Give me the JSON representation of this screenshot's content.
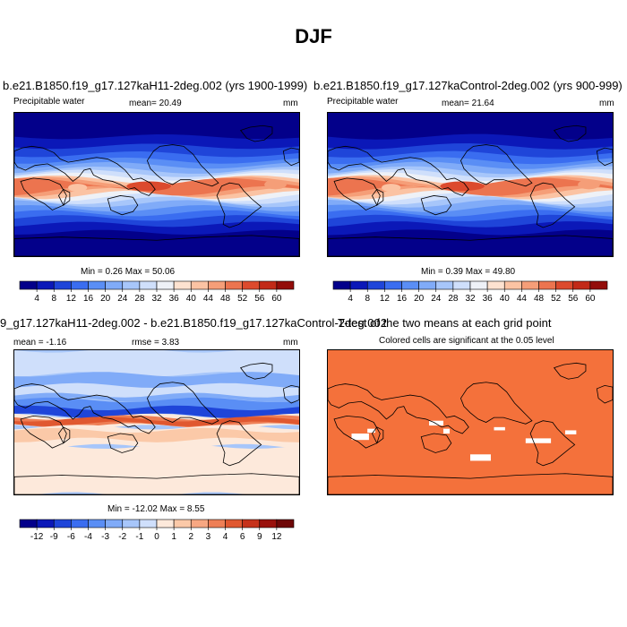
{
  "page": {
    "title": "DJF"
  },
  "panels": [
    {
      "id": "case",
      "title": "b.e21.B1850.f19_g17.127kaH11-2deg.002 (yrs 1900-1999)",
      "variable": "Precipitable water",
      "mean_text": "mean=  20.49",
      "units": "mm",
      "minmax_text": "Min =   0.26 Max =  50.06"
    },
    {
      "id": "control",
      "title": "b.e21.B1850.f19_g17.127kaControl-2deg.002 (yrs 900-999)",
      "variable": "Precipitable water",
      "mean_text": "mean=  21.64",
      "units": "mm",
      "minmax_text": "Min =   0.39 Max =  49.80"
    },
    {
      "id": "diff",
      "title": "9_g17.127kaH11-2deg.002 - b.e21.B1850.f19_g17.127kaControl-2deg.002",
      "mean_text": "mean =  -1.16",
      "rmse_text": "rmse =   3.83",
      "units": "mm",
      "minmax_text": "Min = -12.02 Max =   8.55"
    },
    {
      "id": "ttest",
      "title": "T-test of the two means at each grid point",
      "subtitle": "Colored cells are significant at the 0.05 level"
    }
  ],
  "chart_data": [
    {
      "type": "heatmap",
      "title": "b.e21.B1850.f19_g17.127kaH11-2deg.002 (yrs 1900-1999)",
      "field": "Precipitable water",
      "units": "mm",
      "mean": 20.49,
      "min": 0.26,
      "max": 50.06,
      "colorbar_levels": [
        4,
        8,
        12,
        16,
        20,
        24,
        28,
        32,
        36,
        40,
        44,
        48,
        52,
        56,
        60
      ]
    },
    {
      "type": "heatmap",
      "title": "b.e21.B1850.f19_g17.127kaControl-2deg.002 (yrs 900-999)",
      "field": "Precipitable water",
      "units": "mm",
      "mean": 21.64,
      "min": 0.39,
      "max": 49.8,
      "colorbar_levels": [
        4,
        8,
        12,
        16,
        20,
        24,
        28,
        32,
        36,
        40,
        44,
        48,
        52,
        56,
        60
      ]
    },
    {
      "type": "heatmap",
      "title": "9_g17.127kaH11-2deg.002 - b.e21.B1850.f19_g17.127kaControl-2deg.002",
      "units": "mm",
      "mean": -1.16,
      "rmse": 3.83,
      "min": -12.02,
      "max": 8.55,
      "colorbar_levels": [
        -12,
        -9,
        -6,
        -4,
        -3,
        -2,
        -1,
        0,
        1,
        2,
        3,
        4,
        6,
        9,
        12
      ]
    },
    {
      "type": "heatmap",
      "title": "T-test of the two means at each grid point",
      "subtitle": "Colored cells are significant at the 0.05 level"
    }
  ],
  "colors": {
    "pw_scale": [
      "#03008a",
      "#0b18b8",
      "#1f45d9",
      "#3a6df0",
      "#5a8ef5",
      "#80abf8",
      "#a7c6fa",
      "#cfdffb",
      "#eef1f7",
      "#fde2d0",
      "#fbc3a3",
      "#f59e78",
      "#ec744f",
      "#dc4a2d",
      "#c22a18",
      "#930d0a"
    ],
    "diff_scale": [
      "#03008a",
      "#0b18b8",
      "#1f45d9",
      "#3a6df0",
      "#5a8ef5",
      "#80abf8",
      "#a7c6fa",
      "#cfdffb",
      "#fde9db",
      "#fbc9a8",
      "#f7a782",
      "#ee7f56",
      "#e05830",
      "#c6321b",
      "#9a110c",
      "#6e0707"
    ],
    "significance": "#f4713b",
    "land_outline": "#000000"
  }
}
